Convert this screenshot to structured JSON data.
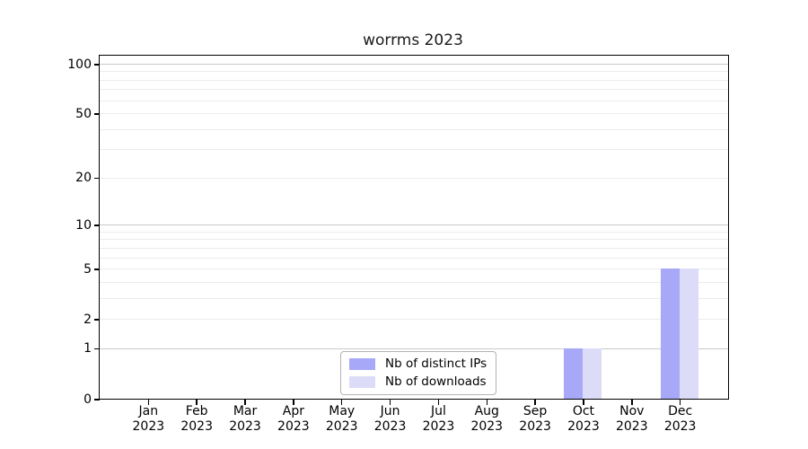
{
  "chart_data": {
    "type": "bar",
    "title": "worrms 2023",
    "categories": [
      "Jan 2023",
      "Feb 2023",
      "Mar 2023",
      "Apr 2023",
      "May 2023",
      "Jun 2023",
      "Jul 2023",
      "Aug 2023",
      "Sep 2023",
      "Oct 2023",
      "Nov 2023",
      "Dec 2023"
    ],
    "series": [
      {
        "name": "Nb of distinct IPs",
        "color": "#a8a8f8",
        "values": [
          0,
          0,
          0,
          0,
          0,
          0,
          0,
          0,
          0,
          1,
          0,
          5
        ]
      },
      {
        "name": "Nb of downloads",
        "color": "#dcdcf8",
        "values": [
          0,
          0,
          0,
          0,
          0,
          0,
          0,
          0,
          0,
          1,
          0,
          5
        ]
      }
    ],
    "xlabel": "",
    "ylabel": "",
    "y_axis": {
      "scale": "log1p",
      "ylim": [
        0,
        100
      ],
      "tick_labels": [
        100,
        50,
        20,
        10,
        5,
        2,
        1,
        0
      ],
      "emphasized_gridlines": [
        1,
        10,
        100
      ],
      "minor_gridlines": [
        3,
        4,
        6,
        7,
        8,
        9,
        30,
        40,
        60,
        70,
        80,
        90
      ]
    },
    "legend": {
      "position": "lower center"
    },
    "grid": true
  },
  "colors": {
    "background": "#ffffff",
    "axis": "#000000",
    "grid_major": "#c9c9c9",
    "grid_minor": "#ececec",
    "legend_border": "#b3b3b3"
  }
}
